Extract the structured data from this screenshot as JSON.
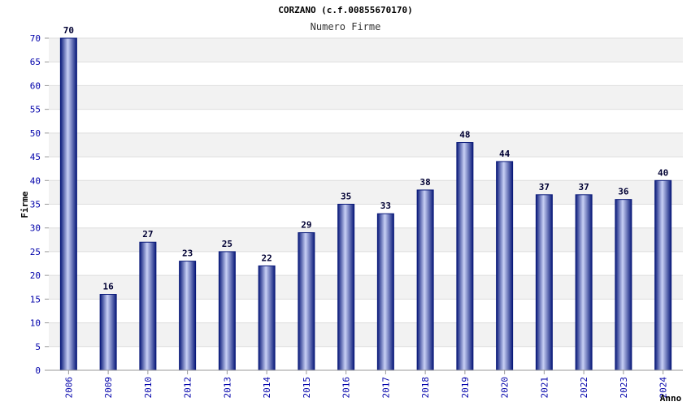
{
  "chart_data": {
    "type": "bar",
    "title": "CORZANO (c.f.00855670170)",
    "subtitle": "Numero Firme",
    "xlabel": "Anno",
    "ylabel": "Firme",
    "categories": [
      "2006",
      "2009",
      "2010",
      "2012",
      "2013",
      "2014",
      "2015",
      "2016",
      "2017",
      "2018",
      "2019",
      "2020",
      "2021",
      "2022",
      "2023",
      "2024"
    ],
    "values": [
      70,
      16,
      27,
      23,
      25,
      22,
      29,
      35,
      33,
      38,
      48,
      44,
      37,
      37,
      36,
      40
    ],
    "ylim": [
      0,
      70
    ],
    "yticks": [
      0,
      5,
      10,
      15,
      20,
      25,
      30,
      35,
      40,
      45,
      50,
      55,
      60,
      65,
      70
    ],
    "grid": true,
    "colors": {
      "bar_dark": "#0a1a7a",
      "bar_light": "#c8d0f5",
      "band": "#f2f2f2",
      "tick": "#0000aa"
    }
  }
}
